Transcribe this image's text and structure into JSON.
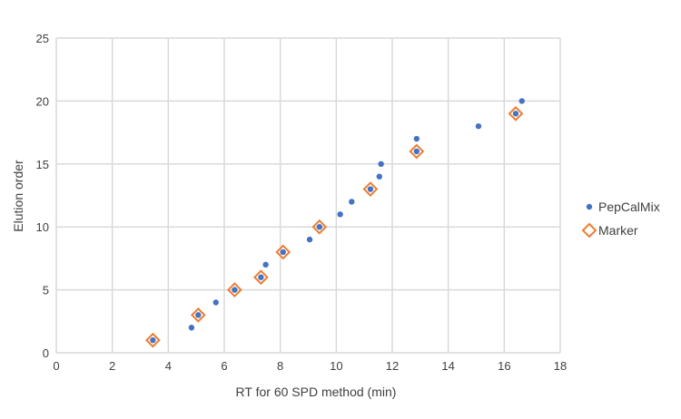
{
  "chart_data": {
    "type": "scatter",
    "title": "",
    "xlabel": "RT for 60 SPD method (min)",
    "ylabel": "Elution order",
    "xlim": [
      0,
      18
    ],
    "ylim": [
      0,
      25
    ],
    "xticks": [
      0,
      2,
      4,
      6,
      8,
      10,
      12,
      14,
      16,
      18
    ],
    "yticks": [
      0,
      5,
      10,
      15,
      20,
      25
    ],
    "grid": true,
    "legend_position": "right",
    "series": [
      {
        "name": "PepCalMix",
        "marker": "circle",
        "color": "#4472C4",
        "x": [
          3.45,
          4.83,
          5.07,
          5.7,
          6.37,
          7.31,
          7.48,
          8.1,
          9.05,
          9.4,
          10.14,
          10.55,
          11.22,
          11.54,
          11.6,
          12.87,
          12.87,
          15.08,
          16.41,
          16.63
        ],
        "y": [
          1,
          2,
          3,
          4,
          5,
          6,
          7,
          8,
          9,
          10,
          11,
          12,
          13,
          14,
          15,
          16,
          17,
          18,
          19,
          20
        ]
      },
      {
        "name": "Marker",
        "marker": "diamond",
        "color": "#ED7D31",
        "x": [
          3.45,
          5.07,
          6.37,
          7.31,
          8.1,
          9.4,
          11.22,
          12.87,
          16.41
        ],
        "y": [
          1,
          3,
          5,
          6,
          8,
          10,
          13,
          16,
          19
        ]
      }
    ]
  }
}
